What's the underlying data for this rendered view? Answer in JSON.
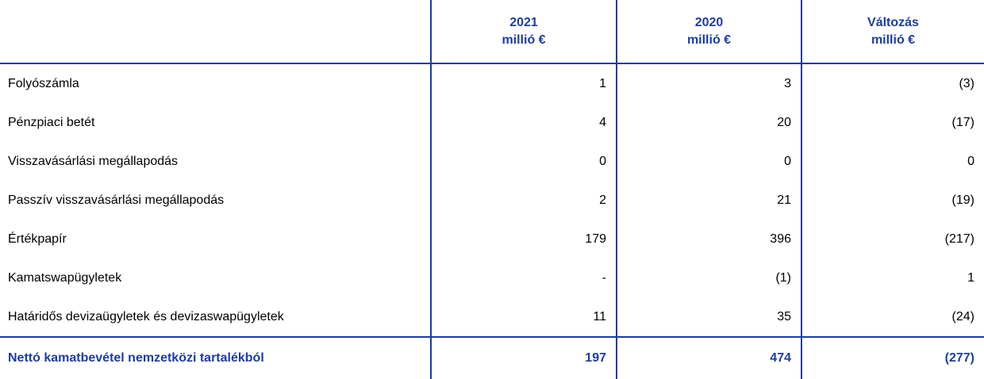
{
  "table": {
    "header": [
      {
        "line1": "2021",
        "line2": "millió €"
      },
      {
        "line1": "2020",
        "line2": "millió €"
      },
      {
        "line1": "Változás",
        "line2": "millió €"
      }
    ],
    "rows": [
      [
        "Folyószámla",
        "1",
        "3",
        "(3)"
      ],
      [
        "Pénzpiaci betét",
        "4",
        "20",
        "(17)"
      ],
      [
        "Visszavásárlási megállapodás",
        "0",
        "0",
        "0"
      ],
      [
        "Passzív visszavásárlási megállapodás",
        "2",
        "21",
        "(19)"
      ],
      [
        "Értékpapír",
        "179",
        "396",
        "(217)"
      ],
      [
        "Kamatswapügyletek",
        "-",
        "(1)",
        "1"
      ],
      [
        "Határidős devizaügyletek és devizaswapügyletek",
        "11",
        "35",
        "(24)"
      ]
    ],
    "total": [
      "Nettó kamatbevétel nemzetközi tartalékból",
      "197",
      "474",
      "(277)"
    ]
  }
}
